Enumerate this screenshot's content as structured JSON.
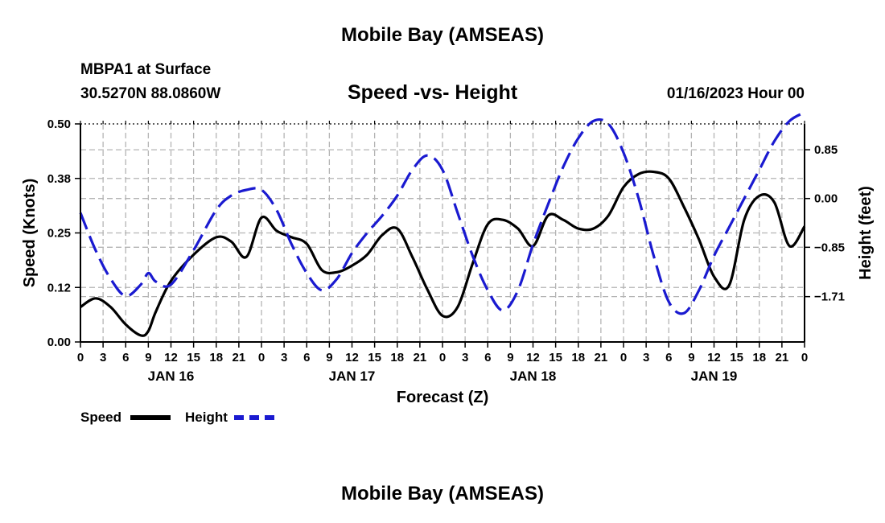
{
  "page": {
    "title": "Mobile Bay (AMSEAS)",
    "station_line": "MBPA1 at Surface",
    "coords_line": "30.5270N  88.0860W",
    "chart_title": "Speed -vs- Height",
    "issued": "01/16/2023 Hour 00",
    "footer_title": "Mobile Bay (AMSEAS)"
  },
  "chart_data": {
    "type": "line",
    "xlabel": "Forecast (Z)",
    "x_hour_ticks": [
      "0",
      "3",
      "6",
      "9",
      "12",
      "15",
      "18",
      "21",
      "0",
      "3",
      "6",
      "9",
      "12",
      "15",
      "18",
      "21",
      "0",
      "3",
      "6",
      "9",
      "12",
      "15",
      "18",
      "21",
      "0",
      "3",
      "6",
      "9",
      "12",
      "15",
      "18",
      "21",
      "0"
    ],
    "date_labels": [
      {
        "label": "JAN 16",
        "hour": 12
      },
      {
        "label": "JAN 17",
        "hour": 36
      },
      {
        "label": "JAN 18",
        "hour": 60
      },
      {
        "label": "JAN 19",
        "hour": 84
      }
    ],
    "x_range_hours": [
      0,
      96
    ],
    "left_axis": {
      "label": "Speed (Knots)",
      "ylim": [
        0,
        0.5
      ],
      "ticks": [
        "0.00",
        "0.12",
        "0.25",
        "0.38",
        "0.50"
      ],
      "tick_values": [
        0,
        0.125,
        0.25,
        0.375,
        0.5
      ]
    },
    "right_axis": {
      "label": "Height (feet)",
      "ylim": [
        -2.5,
        1.3
      ],
      "ticks": [
        "0.85",
        "0.00",
        "−0.85",
        "−1.71"
      ],
      "tick_values": [
        0.85,
        0.0,
        -0.85,
        -1.71
      ]
    },
    "grid": true,
    "series": [
      {
        "name": "Speed",
        "color": "#000000",
        "axis": "left",
        "x_hours": [
          0,
          2,
          4,
          6,
          8,
          9,
          10,
          12,
          15,
          18,
          20,
          22,
          24,
          26,
          28,
          30,
          32,
          34,
          36,
          38,
          40,
          42,
          44,
          46,
          48,
          50,
          52,
          54,
          56,
          58,
          60,
          62,
          64,
          66,
          68,
          70,
          72,
          74,
          76,
          78,
          80,
          82,
          84,
          86,
          88,
          90,
          92,
          94,
          96
        ],
        "values": [
          0.08,
          0.1,
          0.08,
          0.04,
          0.015,
          0.025,
          0.07,
          0.14,
          0.2,
          0.24,
          0.23,
          0.195,
          0.285,
          0.255,
          0.24,
          0.225,
          0.165,
          0.16,
          0.175,
          0.2,
          0.245,
          0.26,
          0.195,
          0.12,
          0.06,
          0.08,
          0.18,
          0.27,
          0.28,
          0.26,
          0.22,
          0.29,
          0.28,
          0.26,
          0.26,
          0.29,
          0.355,
          0.385,
          0.39,
          0.375,
          0.31,
          0.235,
          0.15,
          0.13,
          0.28,
          0.335,
          0.32,
          0.22,
          0.265
        ]
      },
      {
        "name": "Height",
        "color": "#1a1ad0",
        "axis": "right",
        "x_hours": [
          0,
          2,
          4,
          6,
          8,
          9,
          10,
          12,
          15,
          18,
          20,
          22,
          24,
          26,
          28,
          30,
          32,
          34,
          36,
          38,
          40,
          42,
          44,
          46,
          48,
          50,
          52,
          54,
          56,
          58,
          60,
          62,
          64,
          66,
          68,
          70,
          72,
          74,
          76,
          78,
          80,
          82,
          84,
          86,
          88,
          90,
          92,
          94,
          96
        ],
        "values": [
          -0.25,
          -0.9,
          -1.4,
          -1.7,
          -1.5,
          -1.3,
          -1.45,
          -1.5,
          -0.9,
          -0.2,
          0.05,
          0.15,
          0.15,
          -0.2,
          -0.8,
          -1.3,
          -1.6,
          -1.4,
          -0.95,
          -0.6,
          -0.3,
          0.05,
          0.5,
          0.75,
          0.5,
          -0.25,
          -1.0,
          -1.6,
          -1.95,
          -1.6,
          -0.8,
          -0.1,
          0.55,
          1.05,
          1.35,
          1.3,
          0.8,
          0.0,
          -1.0,
          -1.8,
          -2.0,
          -1.6,
          -1.0,
          -0.5,
          0.0,
          0.5,
          1.0,
          1.35,
          1.5
        ]
      }
    ],
    "legend": [
      {
        "label": "Speed",
        "color": "#000000",
        "dash": "solid"
      },
      {
        "label": "Height",
        "color": "#1a1ad0",
        "dash": "dashed"
      }
    ]
  }
}
